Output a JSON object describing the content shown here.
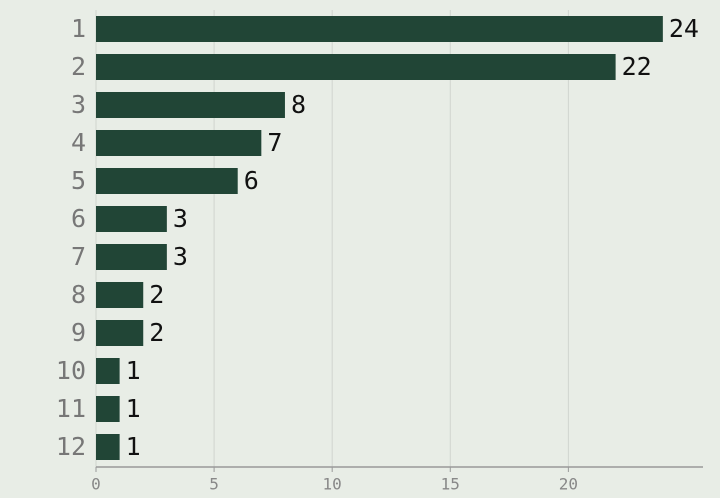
{
  "chart_data": {
    "type": "barh",
    "categories": [
      "1",
      "2",
      "3",
      "4",
      "5",
      "6",
      "7",
      "8",
      "9",
      "10",
      "11",
      "12"
    ],
    "values": [
      24,
      22,
      8,
      7,
      6,
      3,
      3,
      2,
      2,
      1,
      1,
      1
    ],
    "color": "#214536",
    "xlim": [
      0,
      25.7
    ],
    "xticks": [
      0,
      5,
      10,
      15,
      20
    ],
    "grid": true
  }
}
